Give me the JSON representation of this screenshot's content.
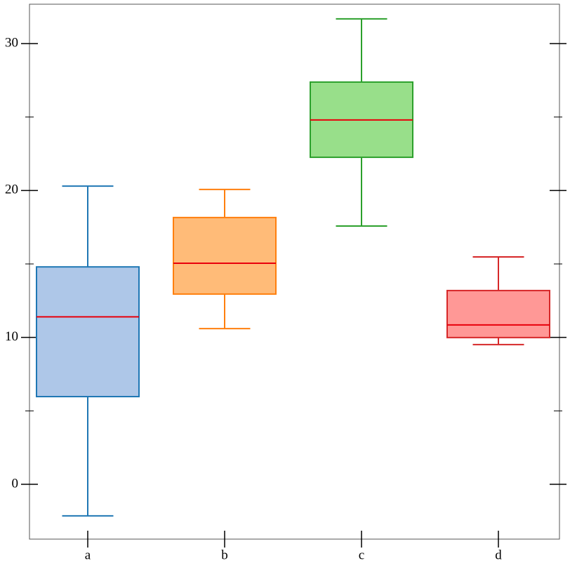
{
  "chart_data": {
    "type": "box",
    "categories": [
      "a",
      "b",
      "c",
      "d"
    ],
    "boxes": [
      {
        "whislo": -2.15,
        "q1": 5.97,
        "med": 11.4,
        "q3": 14.8,
        "whishi": 20.3,
        "color": "#1f77b4",
        "fill": "#aec7e8"
      },
      {
        "whislo": 10.6,
        "q1": 12.95,
        "med": 15.05,
        "q3": 18.16,
        "whishi": 20.07,
        "color": "#ff7f0e",
        "fill": "#ffbb78"
      },
      {
        "whislo": 17.58,
        "q1": 22.26,
        "med": 24.8,
        "q3": 27.38,
        "whishi": 31.68,
        "color": "#2ca02c",
        "fill": "#98df8a"
      },
      {
        "whislo": 9.51,
        "q1": 9.99,
        "med": 10.85,
        "q3": 13.19,
        "whishi": 15.48,
        "color": "#d62728",
        "fill": "#ff9896"
      }
    ],
    "median_color": "#e8000b",
    "ylim": [
      -3.73,
      32.68
    ],
    "yticks": [
      0,
      10,
      20,
      30
    ],
    "yticks_minor": [
      5,
      15,
      25
    ]
  }
}
